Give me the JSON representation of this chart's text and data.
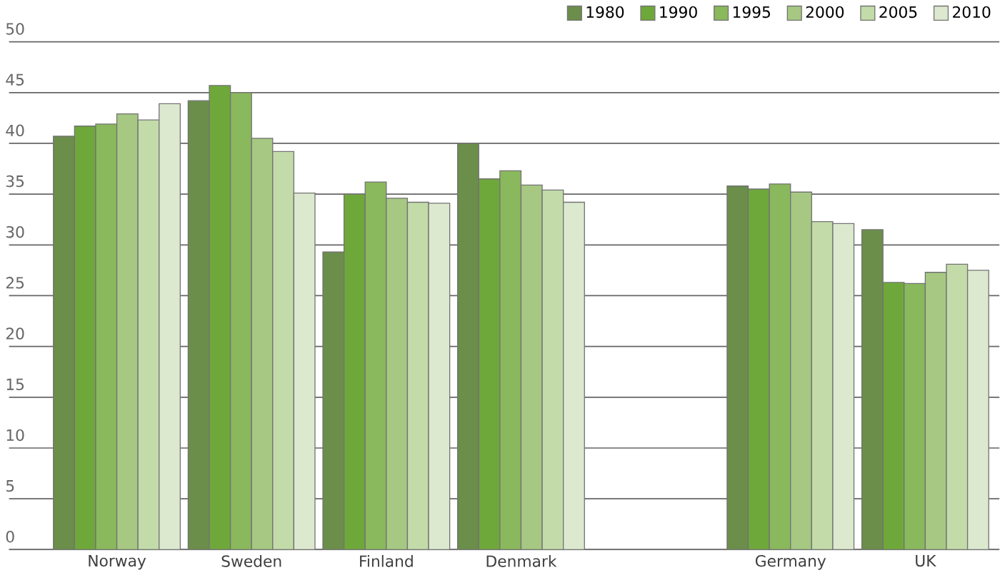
{
  "chart_data": {
    "type": "bar",
    "categories": [
      "Norway",
      "Sweden",
      "Finland",
      "Denmark",
      null,
      "Germany",
      "UK"
    ],
    "series": [
      {
        "name": "1980",
        "color": "#6b8e4a",
        "values": [
          40.7,
          44.2,
          29.3,
          40.0,
          null,
          35.8,
          31.5
        ]
      },
      {
        "name": "1990",
        "color": "#6fa83a",
        "values": [
          41.7,
          45.7,
          35.0,
          36.5,
          null,
          35.5,
          26.3
        ]
      },
      {
        "name": "1995",
        "color": "#8ab85c",
        "values": [
          41.9,
          45.0,
          36.2,
          37.3,
          null,
          36.0,
          26.2
        ]
      },
      {
        "name": "2000",
        "color": "#a6c882",
        "values": [
          42.9,
          40.5,
          34.6,
          35.9,
          null,
          35.2,
          27.3
        ]
      },
      {
        "name": "2005",
        "color": "#c2dba8",
        "values": [
          42.3,
          39.2,
          34.2,
          35.4,
          null,
          32.3,
          28.1
        ]
      },
      {
        "name": "2010",
        "color": "#dde9cf",
        "values": [
          43.9,
          35.1,
          34.1,
          34.2,
          null,
          32.1,
          27.5
        ]
      }
    ],
    "ylim": [
      0,
      50
    ],
    "yticks": [
      0,
      5,
      10,
      15,
      20,
      25,
      30,
      35,
      40,
      45,
      50
    ],
    "grid": "y",
    "legend": "top right"
  }
}
